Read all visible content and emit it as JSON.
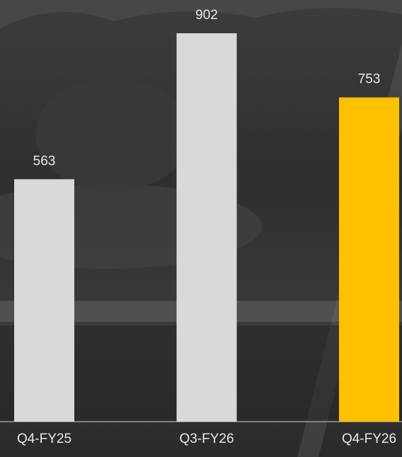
{
  "chart_data": {
    "type": "bar",
    "categories": [
      "Q4-FY25",
      "Q3-FY26",
      "Q4-FY26"
    ],
    "values": [
      563,
      902,
      753
    ],
    "colors": [
      "#d9d9d9",
      "#d9d9d9",
      "#ffc000"
    ]
  }
}
